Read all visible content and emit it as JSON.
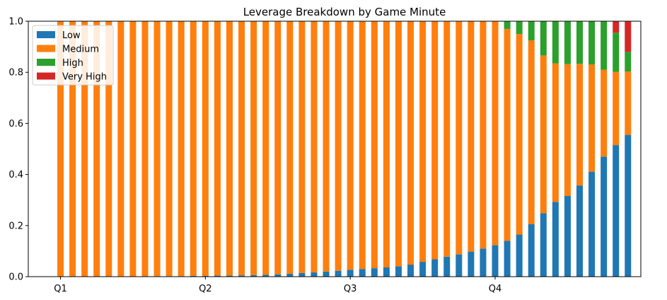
{
  "chart_data": {
    "type": "bar",
    "stacked": true,
    "title": "Leverage Breakdown by Game Minute",
    "xlabel": "",
    "ylabel": "",
    "ylim": [
      0,
      1.0
    ],
    "y_ticks": [
      "0.0",
      "0.2",
      "0.4",
      "0.6",
      "0.8",
      "1.0"
    ],
    "x_ticks": [
      {
        "label": "Q1",
        "minute": 0
      },
      {
        "label": "Q2",
        "minute": 12
      },
      {
        "label": "Q3",
        "minute": 24
      },
      {
        "label": "Q4",
        "minute": 36
      }
    ],
    "minutes": [
      0,
      1,
      2,
      3,
      4,
      5,
      6,
      7,
      8,
      9,
      10,
      11,
      12,
      13,
      14,
      15,
      16,
      17,
      18,
      19,
      20,
      21,
      22,
      23,
      24,
      25,
      26,
      27,
      28,
      29,
      30,
      31,
      32,
      33,
      34,
      35,
      36,
      37,
      38,
      39,
      40,
      41,
      42,
      43,
      44,
      45,
      46,
      47
    ],
    "legend_position": "upper-left",
    "series": [
      {
        "name": "Low",
        "color": "#1f77b4",
        "values": [
          0,
          0,
          0,
          0,
          0,
          0,
          0.001,
          0.001,
          0.002,
          0.002,
          0.002,
          0.003,
          0.003,
          0.004,
          0.004,
          0.005,
          0.006,
          0.007,
          0.009,
          0.011,
          0.014,
          0.017,
          0.02,
          0.023,
          0.027,
          0.03,
          0.033,
          0.036,
          0.04,
          0.047,
          0.058,
          0.068,
          0.078,
          0.087,
          0.098,
          0.11,
          0.123,
          0.14,
          0.165,
          0.205,
          0.248,
          0.293,
          0.316,
          0.357,
          0.411,
          0.47,
          0.515,
          0.555
        ]
      },
      {
        "name": "Medium",
        "color": "#ff7f0e",
        "values": [
          1,
          1,
          1,
          1,
          1,
          1,
          0.999,
          0.999,
          0.998,
          0.998,
          0.998,
          0.997,
          0.997,
          0.996,
          0.996,
          0.995,
          0.994,
          0.993,
          0.991,
          0.989,
          0.986,
          0.982,
          0.979,
          0.976,
          0.972,
          0.969,
          0.966,
          0.963,
          0.959,
          0.952,
          0.941,
          0.931,
          0.921,
          0.912,
          0.901,
          0.889,
          0.876,
          0.83,
          0.785,
          0.72,
          0.618,
          0.542,
          0.516,
          0.476,
          0.42,
          0.34,
          0.287,
          0.248
        ]
      },
      {
        "name": "High",
        "color": "#2ca02c",
        "values": [
          0,
          0,
          0,
          0,
          0,
          0,
          0,
          0,
          0,
          0,
          0,
          0,
          0,
          0,
          0,
          0,
          0,
          0,
          0,
          0,
          0,
          0.001,
          0.001,
          0.001,
          0.001,
          0.001,
          0.001,
          0.001,
          0.001,
          0.001,
          0.001,
          0.001,
          0.001,
          0.001,
          0.001,
          0.001,
          0.001,
          0.03,
          0.05,
          0.075,
          0.134,
          0.165,
          0.168,
          0.167,
          0.169,
          0.19,
          0.153,
          0.077
        ]
      },
      {
        "name": "Very High",
        "color": "#d62728",
        "values": [
          0,
          0,
          0,
          0,
          0,
          0,
          0,
          0,
          0,
          0,
          0,
          0,
          0,
          0,
          0,
          0,
          0,
          0,
          0,
          0,
          0,
          0,
          0,
          0,
          0,
          0,
          0,
          0,
          0,
          0,
          0,
          0,
          0,
          0,
          0,
          0,
          0,
          0,
          0,
          0,
          0,
          0,
          0,
          0,
          0,
          0,
          0.045,
          0.12
        ]
      }
    ]
  }
}
